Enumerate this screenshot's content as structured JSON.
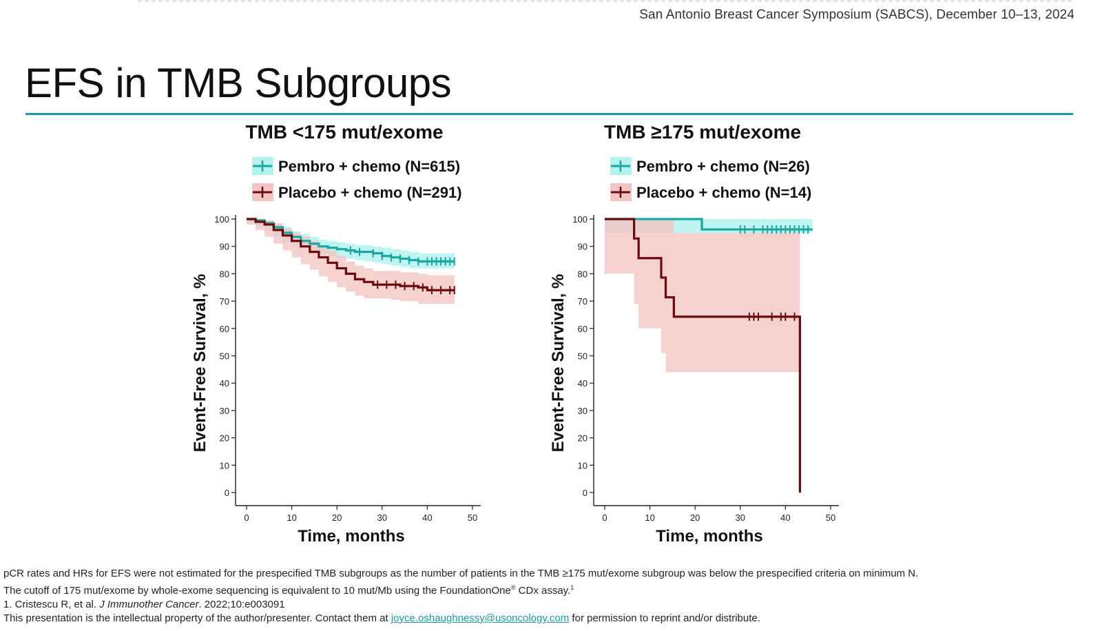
{
  "header": {
    "conference": "San Antonio Breast Cancer Symposium (SABCS), December 10–13, 2024"
  },
  "slide": {
    "title": "EFS in TMB Subgroups"
  },
  "colors": {
    "pembro": "#1aa6a1",
    "pembro_band": "#b3f2ee",
    "placebo": "#6b0b0b",
    "placebo_band": "#f3c6c3",
    "accent_rule": "#1a9aa0"
  },
  "chart_data": [
    {
      "type": "line",
      "subtype": "kaplan-meier",
      "title": "TMB <175 mut/exome",
      "xlabel": "Time, months",
      "ylabel": "Event-Free Survival, %",
      "xlim": [
        0,
        50
      ],
      "ylim": [
        0,
        100
      ],
      "xticks": [
        0,
        10,
        20,
        30,
        40,
        50
      ],
      "yticks": [
        0,
        10,
        20,
        30,
        40,
        50,
        60,
        70,
        80,
        90,
        100
      ],
      "grid": false,
      "legend": "top",
      "series": [
        {
          "name": "Pembro + chemo (N=615)",
          "color": "#1aa6a1",
          "x": [
            0,
            2,
            4,
            6,
            8,
            10,
            12,
            14,
            16,
            18,
            20,
            22,
            24,
            26,
            28,
            30,
            32,
            34,
            36,
            38,
            40,
            42,
            44,
            46
          ],
          "y": [
            100,
            99.5,
            98.5,
            97,
            95,
            93.5,
            92,
            91,
            90,
            89.5,
            89,
            88.5,
            88,
            88,
            87.5,
            86.5,
            86,
            85.5,
            85,
            84.5,
            84.5,
            84.5,
            84.5,
            84.5
          ],
          "ci_lower": [
            100,
            99,
            97.5,
            95.5,
            93.5,
            91.5,
            90,
            89,
            88,
            87.5,
            86.5,
            86,
            85.5,
            85,
            84.5,
            84,
            83.5,
            83,
            82.5,
            82,
            82,
            82,
            82,
            82
          ],
          "ci_upper": [
            100,
            100,
            99.5,
            98.5,
            97,
            95.5,
            94.5,
            93.5,
            92.5,
            92,
            91.5,
            91,
            90.5,
            90.5,
            90,
            89.5,
            89,
            88.5,
            88,
            87.5,
            87.5,
            87.5,
            87.5,
            87.5
          ],
          "censor_x": [
            23,
            25,
            28,
            30,
            32,
            34,
            36,
            38,
            40,
            41,
            42,
            43,
            44,
            45,
            46
          ]
        },
        {
          "name": "Placebo + chemo (N=291)",
          "color": "#6b0b0b",
          "x": [
            0,
            2,
            4,
            6,
            8,
            10,
            12,
            14,
            16,
            18,
            20,
            22,
            24,
            26,
            28,
            30,
            32,
            34,
            36,
            38,
            40,
            42,
            44,
            46
          ],
          "y": [
            100,
            99,
            98,
            96,
            94,
            92,
            90,
            88,
            86,
            84,
            82,
            80,
            78,
            77,
            76,
            76,
            76,
            75.5,
            75.5,
            75,
            74,
            74,
            74,
            74
          ],
          "ci_lower": [
            100,
            98,
            96,
            93.5,
            91,
            88.5,
            86,
            83.5,
            81.5,
            79,
            77,
            75,
            73.5,
            72,
            71,
            71,
            71,
            70.5,
            70,
            70,
            69,
            69,
            69,
            69
          ],
          "ci_upper": [
            100,
            100,
            99.5,
            98.5,
            96.5,
            95,
            93.5,
            92,
            90,
            88.5,
            86.5,
            84.5,
            83,
            82,
            81,
            81,
            81,
            80.5,
            80.5,
            80,
            79.5,
            79.5,
            79.5,
            79.5
          ],
          "censor_x": [
            29,
            31,
            33,
            35,
            37,
            39,
            41,
            43,
            45,
            46
          ]
        }
      ]
    },
    {
      "type": "line",
      "subtype": "kaplan-meier",
      "title": "TMB ≥175 mut/exome",
      "xlabel": "Time, months",
      "ylabel": "Event-Free Survival, %",
      "xlim": [
        0,
        50
      ],
      "ylim": [
        0,
        100
      ],
      "xticks": [
        0,
        10,
        20,
        30,
        40,
        50
      ],
      "yticks": [
        0,
        10,
        20,
        30,
        40,
        50,
        60,
        70,
        80,
        90,
        100
      ],
      "grid": false,
      "legend": "top",
      "series": [
        {
          "name": "Pembro + chemo (N=26)",
          "color": "#1aa6a1",
          "x": [
            0,
            21.5,
            46
          ],
          "y": [
            100,
            96.2,
            96.2
          ],
          "ci_lower": [
            100,
            95,
            95
          ],
          "ci_upper": [
            100,
            100,
            100
          ],
          "censor_x": [
            30,
            31,
            33,
            35,
            36,
            37,
            38,
            39,
            40,
            41,
            42,
            43,
            44,
            45
          ]
        },
        {
          "name": "Placebo + chemo (N=14)",
          "color": "#6b0b0b",
          "x": [
            0,
            6.5,
            7.5,
            12.5,
            13.5,
            15.3,
            43,
            43.2
          ],
          "y": [
            100,
            92.9,
            85.7,
            78.6,
            71.4,
            64.3,
            64.3,
            0
          ],
          "ci_lower": [
            100,
            80,
            69,
            60,
            51,
            44,
            44,
            44
          ],
          "ci_upper": [
            100,
            100,
            100,
            100,
            100,
            95,
            95,
            95
          ],
          "censor_x": [
            32,
            33,
            34,
            37,
            39,
            40,
            42
          ]
        }
      ]
    }
  ],
  "footnotes": {
    "line1": "pCR rates and HRs for EFS were not estimated for the prespecified TMB subgroups as the number of patients in the TMB ≥175 mut/exome subgroup was below the prespecified criteria on minimum N.",
    "line2_pre": "The cutoff of 175 mut/exome by whole-exome sequencing is equivalent to 10 mut/Mb using the FoundationOne",
    "line2_reg": "®",
    "line2_post": " CDx assay.",
    "line2_sup": "1",
    "line3_pre": "1. Cristescu R, et al. ",
    "line3_journal": "J Immunother Cancer",
    "line3_post": ". 2022;10:e003091",
    "line4_pre": "This presentation is the intellectual property of the author/presenter. Contact them at ",
    "line4_email": "joyce.oshaughnessy@usoncology.com",
    "line4_post": " for permission to reprint and/or distribute."
  }
}
